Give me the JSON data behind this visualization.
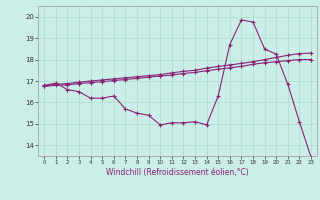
{
  "xlabel": "Windchill (Refroidissement éolien,°C)",
  "bg_color": "#cceee8",
  "line_color": "#882277",
  "grid_color": "#aaddcc",
  "x_min": -0.5,
  "x_max": 23.5,
  "y_min": 13.5,
  "y_max": 20.5,
  "yticks": [
    14,
    15,
    16,
    17,
    18,
    19,
    20
  ],
  "xticks": [
    0,
    1,
    2,
    3,
    4,
    5,
    6,
    7,
    8,
    9,
    10,
    11,
    12,
    13,
    14,
    15,
    16,
    17,
    18,
    19,
    20,
    21,
    22,
    23
  ],
  "curve1_x": [
    0,
    1,
    2,
    3,
    4,
    5,
    6,
    7,
    8,
    9,
    10,
    11,
    12,
    13,
    14,
    15,
    16,
    17,
    18,
    19,
    20,
    21,
    22,
    23
  ],
  "curve1_y": [
    16.8,
    16.9,
    16.6,
    16.5,
    16.2,
    16.2,
    16.3,
    15.7,
    15.5,
    15.4,
    14.95,
    15.05,
    15.05,
    15.1,
    14.95,
    16.3,
    18.7,
    19.85,
    19.75,
    18.5,
    18.25,
    16.85,
    15.1,
    13.45
  ],
  "curve2_x": [
    0,
    1,
    2,
    3,
    4,
    5,
    6,
    7,
    8,
    9,
    10,
    11,
    12,
    13,
    14,
    15,
    16,
    17,
    18,
    19,
    20,
    21,
    22,
    23
  ],
  "curve2_y": [
    16.75,
    16.85,
    16.88,
    16.95,
    17.0,
    17.05,
    17.1,
    17.15,
    17.2,
    17.25,
    17.3,
    17.38,
    17.45,
    17.5,
    17.6,
    17.68,
    17.75,
    17.82,
    17.9,
    18.0,
    18.1,
    18.2,
    18.28,
    18.3
  ],
  "curve3_x": [
    0,
    1,
    2,
    3,
    4,
    5,
    6,
    7,
    8,
    9,
    10,
    11,
    12,
    13,
    14,
    15,
    16,
    17,
    18,
    19,
    20,
    21,
    22,
    23
  ],
  "curve3_y": [
    16.75,
    16.8,
    16.82,
    16.88,
    16.92,
    16.97,
    17.02,
    17.07,
    17.12,
    17.18,
    17.23,
    17.28,
    17.35,
    17.4,
    17.48,
    17.55,
    17.62,
    17.68,
    17.78,
    17.85,
    17.9,
    17.95,
    18.0,
    18.0
  ]
}
